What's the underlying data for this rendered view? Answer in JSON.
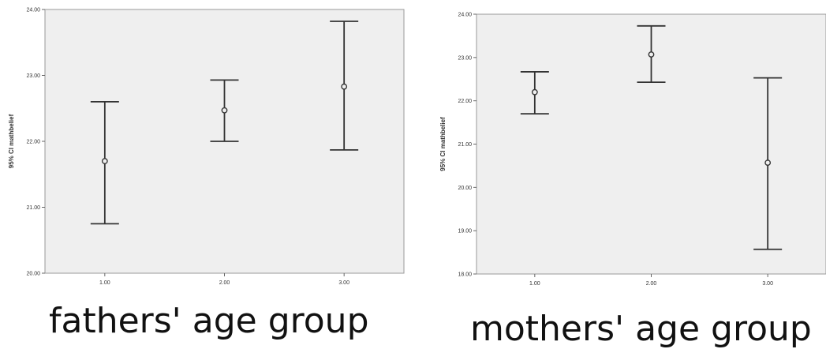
{
  "chart_data": [
    {
      "type": "errorbar",
      "ylabel": "95% CI mathbelief",
      "xlabel": "fathers' age group",
      "categories": [
        "1.00",
        "2.00",
        "3.00"
      ],
      "ylim": [
        20,
        24
      ],
      "yticks": [
        "20.00",
        "21.00",
        "22.00",
        "23.00",
        "24.00"
      ],
      "series": [
        {
          "mean": 21.7,
          "lower": 20.75,
          "upper": 22.6
        },
        {
          "mean": 22.47,
          "lower": 22.0,
          "upper": 22.93
        },
        {
          "mean": 22.83,
          "lower": 21.87,
          "upper": 23.82
        }
      ],
      "grid": false,
      "background": "#efefef"
    },
    {
      "type": "errorbar",
      "ylabel": "95% CI mathbelief",
      "xlabel": "mothers' age group",
      "categories": [
        "1.00",
        "2.00",
        "3.00"
      ],
      "ylim": [
        18,
        24
      ],
      "yticks": [
        "18.00",
        "19.00",
        "20.00",
        "21.00",
        "22.00",
        "23.00",
        "24.00"
      ],
      "series": [
        {
          "mean": 22.2,
          "lower": 21.7,
          "upper": 22.67
        },
        {
          "mean": 23.07,
          "lower": 22.43,
          "upper": 23.73
        },
        {
          "mean": 20.57,
          "lower": 18.57,
          "upper": 22.53
        }
      ],
      "grid": false,
      "background": "#efefef"
    }
  ]
}
